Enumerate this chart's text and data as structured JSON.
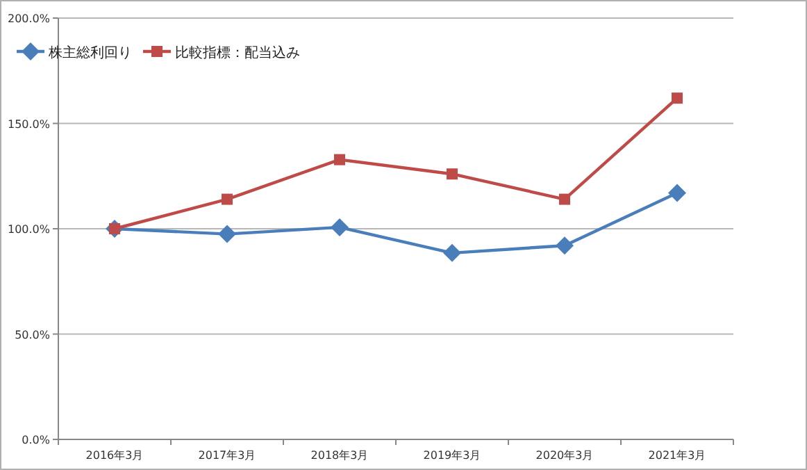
{
  "chart_data": {
    "type": "line",
    "categories": [
      "2016年3月",
      "2017年3月",
      "2018年3月",
      "2019年3月",
      "2020年3月",
      "2021年3月"
    ],
    "series": [
      {
        "name": "株主総利回り",
        "color": "#4a7ebb",
        "marker": "diamond",
        "values": [
          100,
          97.5,
          100.7,
          88.5,
          92,
          117
        ]
      },
      {
        "name": "比較指標：配当込み",
        "color": "#be4b48",
        "marker": "square",
        "values": [
          100,
          114,
          132.8,
          126,
          114,
          162
        ]
      }
    ],
    "ylim": [
      0,
      200
    ],
    "yticks": [
      {
        "value": 0,
        "label": "0.0%"
      },
      {
        "value": 50,
        "label": "50.0%"
      },
      {
        "value": 100,
        "label": "100.0%"
      },
      {
        "value": 150,
        "label": "150.0%"
      },
      {
        "value": 200,
        "label": "200.0%"
      }
    ],
    "grid": "y",
    "legend": "top left",
    "line_style": "solid"
  }
}
